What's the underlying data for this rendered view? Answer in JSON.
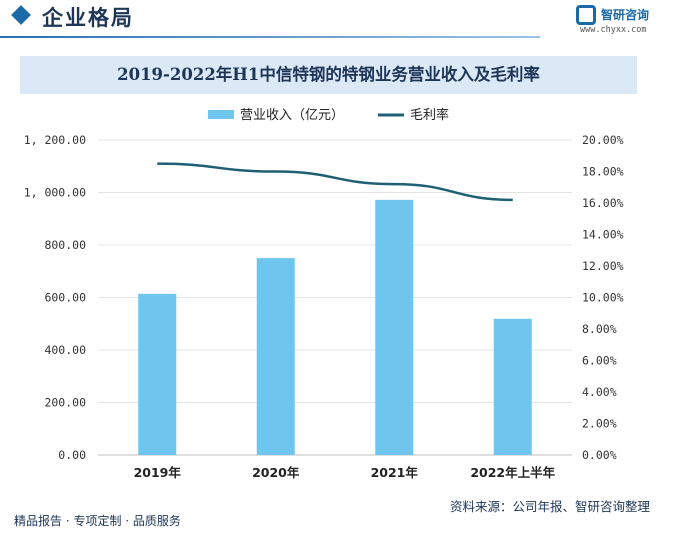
{
  "header": {
    "section_title": "企业格局",
    "logo_name": "智研咨询",
    "logo_url": "www.chyxx.com"
  },
  "chart_data": {
    "type": "bar",
    "title": "2019-2022年H1中信特钢的特钢业务营业收入及毛利率",
    "categories": [
      "2019年",
      "2020年",
      "2021年",
      "2022年上半年"
    ],
    "series": [
      {
        "name": "营业收入（亿元）",
        "type": "bar",
        "axis": "left",
        "color": "#6ec6ef",
        "values": [
          614,
          750,
          972,
          519
        ]
      },
      {
        "name": "毛利率",
        "type": "line",
        "axis": "right",
        "color": "#1e5f74",
        "values": [
          18.5,
          18.0,
          17.2,
          16.2
        ]
      }
    ],
    "y_left": {
      "min": 0,
      "max": 1200,
      "step": 200,
      "ticks": [
        "0.00",
        "200.00",
        "400.00",
        "600.00",
        "800.00",
        "1, 000.00",
        "1, 200.00"
      ]
    },
    "y_right": {
      "min": 0,
      "max": 20,
      "step": 2,
      "ticks": [
        "0.00%",
        "2.00%",
        "4.00%",
        "6.00%",
        "8.00%",
        "10.00%",
        "12.00%",
        "14.00%",
        "16.00%",
        "18.00%",
        "20.00%"
      ]
    },
    "grid": true,
    "legend_position": "top-center"
  },
  "footer": {
    "left_text": "精品报告 · 专项定制 · 品质服务",
    "source_text": "资料来源：公司年报、智研咨询整理"
  }
}
